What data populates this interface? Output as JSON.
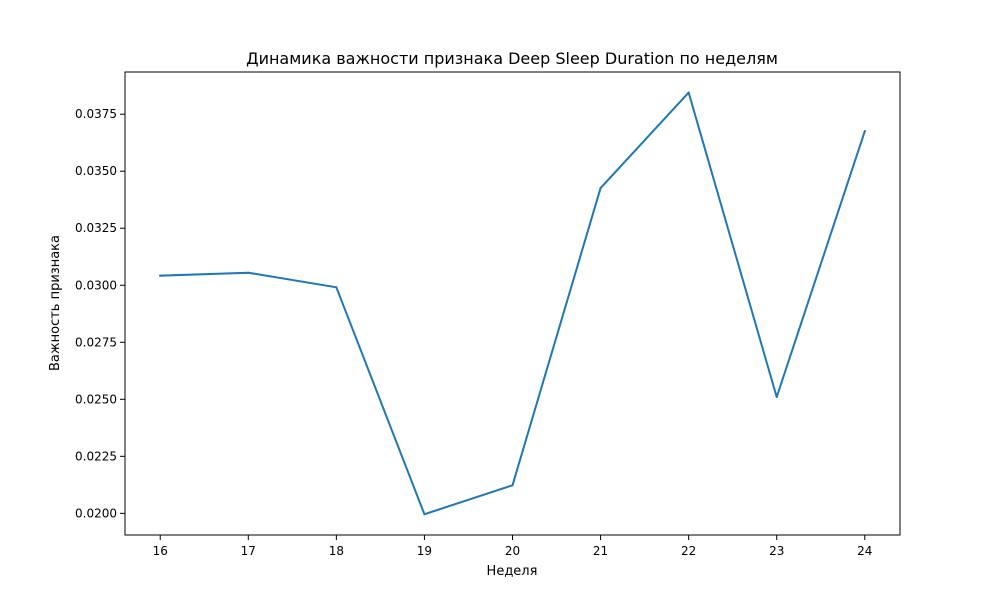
{
  "chart_data": {
    "type": "line",
    "title": "Динамика важности признака Deep Sleep Duration по неделям",
    "xlabel": "Неделя",
    "ylabel": "Важность признака",
    "x": [
      16,
      17,
      18,
      19,
      20,
      21,
      22,
      23,
      24
    ],
    "series": [
      {
        "values": [
          0.03042,
          0.03055,
          0.02991,
          0.01996,
          0.02123,
          0.03426,
          0.03845,
          0.0251,
          0.03675
        ],
        "color": "#1f77b4"
      }
    ],
    "xlim": [
      15.6,
      24.4
    ],
    "ylim": [
      0.01905,
      0.03935
    ],
    "x_ticks": [
      "16",
      "17",
      "18",
      "19",
      "20",
      "21",
      "22",
      "23",
      "24"
    ],
    "y_ticks": [
      "0.0200",
      "0.0225",
      "0.0250",
      "0.0275",
      "0.0300",
      "0.0325",
      "0.0350",
      "0.0375"
    ],
    "y_tick_values": [
      0.02,
      0.0225,
      0.025,
      0.0275,
      0.03,
      0.0325,
      0.035,
      0.0375
    ],
    "grid": false,
    "legend": false
  }
}
